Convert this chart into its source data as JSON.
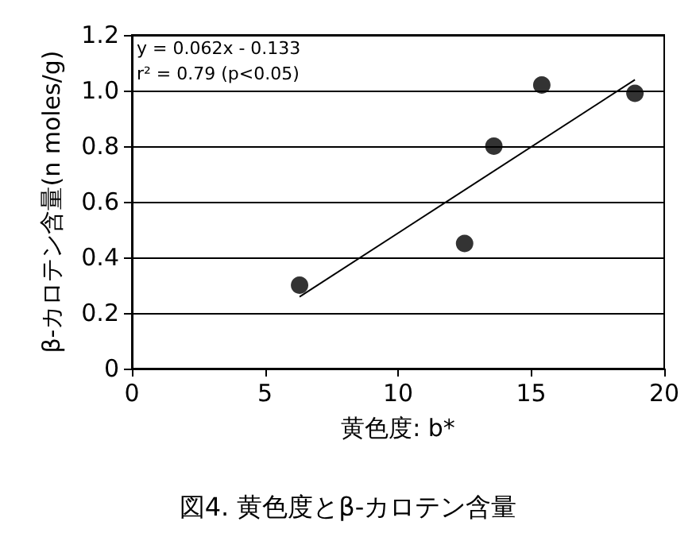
{
  "chart_data": {
    "type": "scatter",
    "title": "図4. 黄色度とβ-カロテン含量",
    "xlabel": "黄色度: b*",
    "ylabel": "β-カロテン含量(n moles/g)",
    "annotations": [
      "y = 0.062x - 0.133",
      "r² = 0.79 (p<0.05)"
    ],
    "x": [
      6.3,
      12.5,
      13.6,
      15.4,
      18.9
    ],
    "series": [
      {
        "color": "#000000",
        "values": [
          0.3,
          0.45,
          0.8,
          1.02,
          0.99
        ],
        "marker": "circle"
      },
      {
        "type": "line",
        "color": "#000000",
        "x": [
          6.3,
          18.9
        ],
        "values": [
          0.258,
          1.039
        ],
        "marker": "none"
      }
    ],
    "xlim": [
      0,
      20
    ],
    "xticks": [
      0,
      5,
      10,
      15,
      20
    ],
    "ylim": [
      0,
      1.2
    ],
    "yticks": [
      0,
      0.2,
      0.4,
      0.6,
      0.8,
      {
        "value": 1,
        "label": "1.0"
      },
      1.2
    ],
    "grid": "y"
  }
}
